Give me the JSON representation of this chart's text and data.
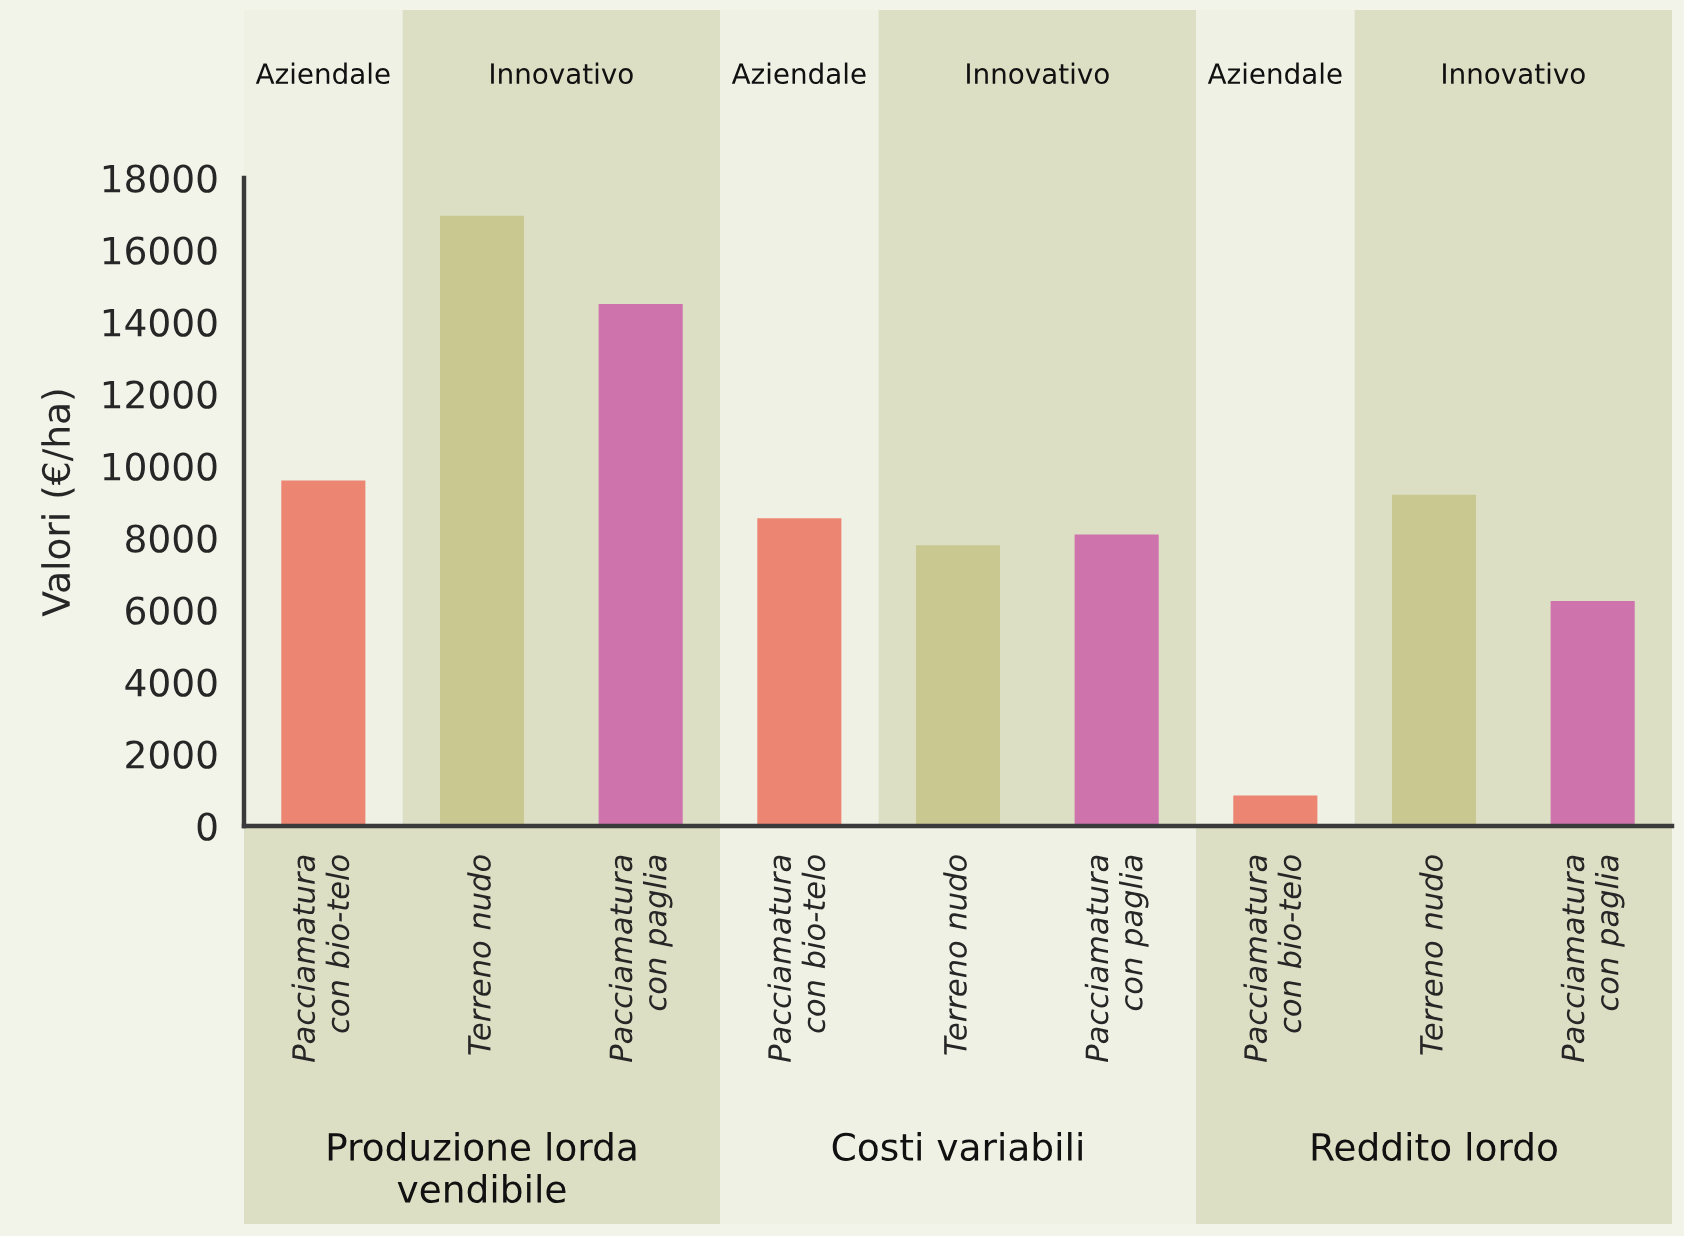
{
  "chart_data": {
    "type": "bar",
    "ylabel": "Valori (€/ha)",
    "categories": [
      "Pacciamatura\ncon bio-telo",
      "Terreno nudo",
      "Pacciamatura\ncon paglia",
      "Pacciamatura\ncon bio-telo",
      "Terreno nudo",
      "Pacciamatura\ncon paglia",
      "Pacciamatura\ncon bio-telo",
      "Terreno nudo",
      "Pacciamatura\ncon paglia"
    ],
    "values": [
      9600,
      16950,
      14500,
      8550,
      7800,
      8100,
      850,
      9200,
      6250
    ],
    "colors": [
      "#ec8672",
      "#c9c891",
      "#cf73ac",
      "#ec8672",
      "#c9c891",
      "#cf73ac",
      "#ec8672",
      "#c9c891",
      "#cf73ac"
    ],
    "ylim": [
      0,
      18000
    ],
    "yticks": [
      0,
      2000,
      4000,
      6000,
      8000,
      10000,
      12000,
      14000,
      16000,
      18000
    ],
    "annotations": [
      "Aziendale",
      "Innovativo",
      "Aziendale",
      "Innovativo",
      "Aziendale",
      "Innovativo",
      "Produzione lorda\nvendibile",
      "Costi variabili",
      "Reddito lordo"
    ]
  }
}
